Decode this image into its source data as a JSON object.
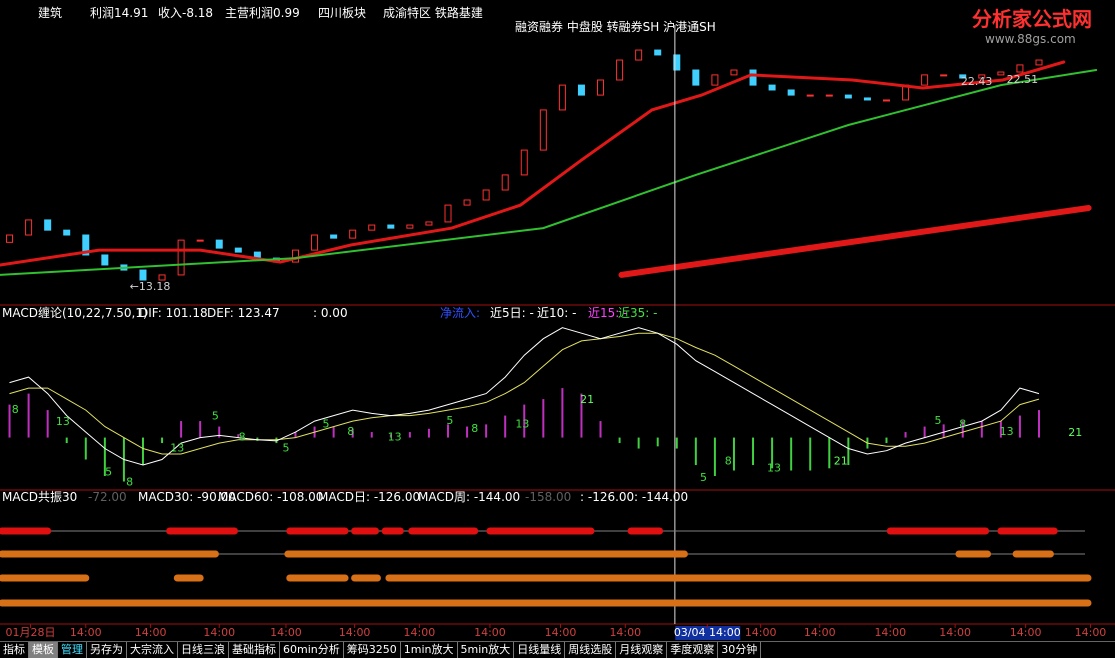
{
  "header": {
    "items": [
      "建筑",
      "利润14.91",
      "收入-8.18",
      "主营利润0.99",
      "四川板块",
      "成渝特区 铁路基建"
    ],
    "tags": "融资融券 中盘股 转融券SH 沪港通SH"
  },
  "watermark": {
    "title": "分析家公式网",
    "url": "www.88gs.com"
  },
  "price_panel": {
    "xlim": [
      -0.5,
      57.2
    ],
    "ylim": [
      12.6,
      25
    ],
    "first_open": 15.2,
    "closes": [
      15.53,
      16.21,
      15.75,
      15.53,
      14.63,
      14.18,
      13.95,
      13.5,
      13.73,
      15.3,
      15.3,
      14.94,
      14.76,
      14.49,
      14.31,
      14.85,
      15.53,
      15.39,
      15.75,
      15.98,
      15.84,
      15.98,
      16.12,
      16.88,
      17.11,
      17.56,
      18.24,
      19.36,
      21.17,
      22.29,
      21.84,
      22.52,
      23.42,
      23.87,
      23.65,
      22.97,
      22.29,
      22.75,
      22.97,
      22.29,
      22.07,
      21.84,
      21.84,
      21.84,
      21.71,
      21.62,
      21.62,
      22.29,
      22.75,
      22.75,
      22.61,
      22.75,
      22.88,
      23.2,
      23.42
    ],
    "lines": [
      {
        "color": "#e01818",
        "width": 3,
        "x": [
          -0.5,
          4.7,
          10,
          14.2,
          17.9,
          23.2,
          26.8,
          30,
          33.7,
          36.3,
          38.9,
          44.2,
          47.9,
          52.1,
          55.3
        ],
        "values": [
          14.18,
          14.85,
          14.85,
          14.31,
          15.08,
          15.84,
          16.88,
          18.91,
          21.17,
          21.84,
          22.75,
          22.52,
          22.16,
          22.52,
          23.33
        ]
      },
      {
        "color": "#30c030",
        "width": 2,
        "x": [
          -0.5,
          15,
          28,
          36,
          44,
          52,
          57
        ],
        "values": [
          13.73,
          14.49,
          15.84,
          18.24,
          20.49,
          22.29,
          22.97
        ]
      },
      {
        "color": "#e01818",
        "width": 6,
        "x": [
          32.1,
          56.6
        ],
        "values": [
          13.73,
          16.75
        ]
      }
    ],
    "annotations": [
      {
        "value": 13.18,
        "label": "←13.18",
        "x": 6.3
      },
      {
        "value": 22.43,
        "label": "22.43",
        "x": 49.9
      },
      {
        "value": 22.51,
        "label": "22.51",
        "x": 52.3
      }
    ],
    "cursor_x": 34.9
  },
  "macd_panel": {
    "title": "MACD缠论(10,22,7.50,1)",
    "dif_label": "DIF: 101.18",
    "dea_label": "DEF: 123.47",
    "zero_label": ": 0.00",
    "inflow": "净流入:",
    "near5": "近5日: -",
    "near10": "近10: -",
    "near15": "近15: -",
    "near35": "近35: -",
    "ylim": [
      -45,
      107
    ],
    "histogram": [
      30,
      40,
      25,
      -5,
      -20,
      -35,
      -40,
      -25,
      -5,
      15,
      15,
      10,
      3,
      -3,
      -5,
      5,
      10,
      10,
      8,
      5,
      3,
      5,
      8,
      12,
      10,
      12,
      20,
      30,
      35,
      45,
      40,
      15,
      -5,
      -10,
      -8,
      -10,
      -25,
      -35,
      -30,
      -25,
      -28,
      -30,
      -30,
      -28,
      -25,
      -10,
      -5,
      5,
      10,
      12,
      15,
      15,
      15,
      20,
      25
    ],
    "dif": [
      50,
      55,
      40,
      20,
      5,
      -10,
      -20,
      -25,
      -20,
      -5,
      0,
      2,
      0,
      -2,
      -3,
      5,
      15,
      20,
      25,
      22,
      20,
      22,
      25,
      30,
      35,
      40,
      55,
      75,
      90,
      100,
      95,
      90,
      95,
      100,
      95,
      85,
      70,
      60,
      50,
      40,
      30,
      20,
      10,
      0,
      -10,
      -15,
      -12,
      -5,
      0,
      5,
      10,
      15,
      25,
      45,
      40
    ],
    "dea": [
      40,
      45,
      45,
      35,
      25,
      10,
      0,
      -10,
      -15,
      -15,
      -10,
      -5,
      -2,
      -2,
      -2,
      0,
      5,
      10,
      15,
      18,
      20,
      20,
      22,
      25,
      28,
      32,
      40,
      50,
      65,
      80,
      88,
      90,
      92,
      95,
      95,
      90,
      82,
      75,
      65,
      55,
      45,
      35,
      25,
      15,
      5,
      -5,
      -8,
      -8,
      -5,
      0,
      5,
      10,
      15,
      30,
      35
    ],
    "counts": [
      {
        "x": 0.3,
        "y": 25,
        "text": 8
      },
      {
        "x": 2.8,
        "y": 14,
        "text": 13
      },
      {
        "x": 5.2,
        "y": -32,
        "text": 5
      },
      {
        "x": 6.3,
        "y": -41,
        "text": 8
      },
      {
        "x": 8.8,
        "y": -10,
        "text": 13
      },
      {
        "x": 10.8,
        "y": 19,
        "text": 5
      },
      {
        "x": 12.2,
        "y": 0,
        "text": 8
      },
      {
        "x": 14.5,
        "y": -10,
        "text": 5
      },
      {
        "x": 16.6,
        "y": 12,
        "text": 5
      },
      {
        "x": 17.9,
        "y": 5,
        "text": 8
      },
      {
        "x": 20.2,
        "y": 0,
        "text": 13
      },
      {
        "x": 23.1,
        "y": 15,
        "text": 5
      },
      {
        "x": 24.4,
        "y": 8,
        "text": 8
      },
      {
        "x": 26.9,
        "y": 12,
        "text": 13
      },
      {
        "x": 30.3,
        "y": 34,
        "text": 21
      },
      {
        "x": 36.4,
        "y": -37,
        "text": 5
      },
      {
        "x": 37.7,
        "y": -22,
        "text": 8
      },
      {
        "x": 40.1,
        "y": -28,
        "text": 13
      },
      {
        "x": 43.6,
        "y": -22,
        "text": 21
      },
      {
        "x": 48.7,
        "y": 15,
        "text": 5
      },
      {
        "x": 50,
        "y": 12,
        "text": 8
      },
      {
        "x": 52.3,
        "y": 5,
        "text": 13
      },
      {
        "x": 55.9,
        "y": 4,
        "text": 21
      }
    ]
  },
  "resonance_panel": {
    "title": "MACD共振30",
    "v0": "-72.00",
    "m30": "MACD30: -90.00",
    "m60": "MACD60: -108.00",
    "mday": "MACD日: -126.00",
    "mweek": "MACD周: -144.00",
    "v5": "-158.00",
    "v6": ": -126.00",
    "v7": ": -144.00",
    "rows": [
      {
        "color": "#e01010",
        "segments": [
          [
            -0.5,
            2.0
          ],
          [
            8.4,
            11.8
          ],
          [
            14.7,
            17.6
          ],
          [
            18.1,
            19.2
          ],
          [
            19.7,
            20.5
          ],
          [
            21.1,
            24.4
          ],
          [
            25.2,
            30.5
          ],
          [
            32.6,
            34.1
          ],
          [
            46.2,
            51.2
          ],
          [
            52.0,
            54.8
          ]
        ]
      },
      {
        "color": "#d87018",
        "segments": [
          [
            -0.5,
            10.8
          ],
          [
            14.6,
            35.4
          ],
          [
            49.8,
            51.3
          ],
          [
            52.8,
            54.6
          ]
        ]
      },
      {
        "color": "#d87018",
        "segments": [
          [
            -0.5,
            4.0
          ],
          [
            8.8,
            10.0
          ],
          [
            14.7,
            17.6
          ],
          [
            18.1,
            19.3
          ],
          [
            19.9,
            56.7
          ]
        ]
      },
      {
        "color": "#d87018",
        "segments": [
          [
            -0.5,
            56.7
          ]
        ]
      }
    ]
  },
  "time_axis": [
    {
      "x": 1.1,
      "label": "01月28日"
    },
    {
      "x": 4.0,
      "label": "14:00"
    },
    {
      "x": 7.4,
      "label": "14:00"
    },
    {
      "x": 11.0,
      "label": "14:00"
    },
    {
      "x": 14.5,
      "label": "14:00"
    },
    {
      "x": 18.1,
      "label": "14:00"
    },
    {
      "x": 21.5,
      "label": "14:00"
    },
    {
      "x": 25.2,
      "label": "14:00"
    },
    {
      "x": 28.9,
      "label": "14:00"
    },
    {
      "x": 32.3,
      "label": "14:00"
    },
    {
      "x": 36.6,
      "label": "03/04 14:00"
    },
    {
      "x": 39.4,
      "label": "14:00"
    },
    {
      "x": 42.5,
      "label": "14:00"
    },
    {
      "x": 46.2,
      "label": "14:00"
    },
    {
      "x": 49.6,
      "label": "14:00"
    },
    {
      "x": 53.3,
      "label": "14:00"
    },
    {
      "x": 56.7,
      "label": "14:00"
    }
  ],
  "tabs": [
    "指标",
    "模板",
    "管理",
    "另存为",
    "大宗流入",
    "日线三浪",
    "基础指标",
    "60min分析",
    "筹码3250",
    "1min放大",
    "5min放大",
    "日线量线",
    "周线选股",
    "月线观察",
    "季度观察",
    "30分钟"
  ]
}
